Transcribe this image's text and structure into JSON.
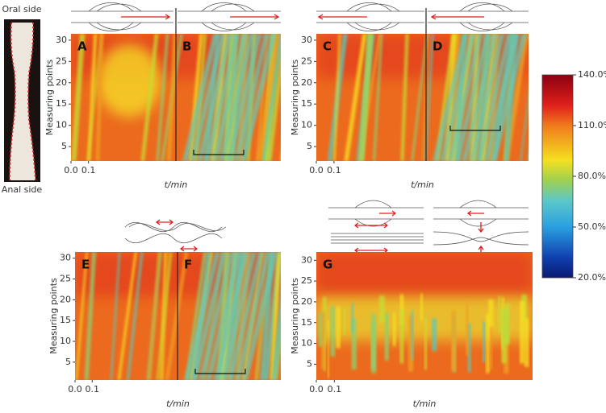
{
  "side_labels": {
    "top": "Oral side",
    "bottom": "Anal side"
  },
  "panels": [
    {
      "letters": [
        "A",
        "B"
      ],
      "ylabel": "Measuring points",
      "xlabel": "t/min",
      "ylim": [
        1.6,
        31.5
      ],
      "yticks": [
        5,
        10,
        15,
        20,
        25,
        30
      ],
      "xlim": [
        0,
        1.2
      ],
      "xticks": [
        {
          "value": 0,
          "label": "0.0"
        },
        {
          "value": 0.1,
          "label": "0.1"
        }
      ]
    },
    {
      "letters": [
        "C",
        "D"
      ],
      "ylabel": "Measuring points",
      "xlabel": "t/min",
      "ylim": [
        1.6,
        31.5
      ],
      "yticks": [
        5,
        10,
        15,
        20,
        25,
        30
      ],
      "xlim": [
        0,
        1.2
      ],
      "xticks": [
        {
          "value": 0,
          "label": "0.0"
        },
        {
          "value": 0.1,
          "label": "0.1"
        }
      ]
    },
    {
      "letters": [
        "E",
        "F"
      ],
      "ylabel": "Measuring points",
      "xlabel": "t/min",
      "ylim": [
        0.7,
        31.5
      ],
      "yticks": [
        5,
        10,
        15,
        20,
        25,
        30
      ],
      "xlim": [
        0,
        1.2
      ],
      "xticks": [
        {
          "value": 0,
          "label": "0.0"
        },
        {
          "value": 0.1,
          "label": "0.1"
        }
      ]
    },
    {
      "letters": [
        "G"
      ],
      "ylabel": "Measuring points",
      "xlabel": "t/min",
      "ylim": [
        1.2,
        32
      ],
      "yticks": [
        5,
        10,
        15,
        20,
        25,
        30
      ],
      "xlim": [
        0,
        1.2
      ],
      "xticks": [
        {
          "value": 0,
          "label": "0.0"
        },
        {
          "value": 0.1,
          "label": "0.1"
        }
      ]
    }
  ],
  "colorbar": {
    "lim": [
      20,
      140
    ],
    "ticks": [
      {
        "value": 140,
        "label": "140.0%"
      },
      {
        "value": 110,
        "label": "110.0%"
      },
      {
        "value": 80,
        "label": "80.0%"
      },
      {
        "value": 50,
        "label": "50.0%"
      },
      {
        "value": 20,
        "label": "20.0%"
      }
    ]
  }
}
